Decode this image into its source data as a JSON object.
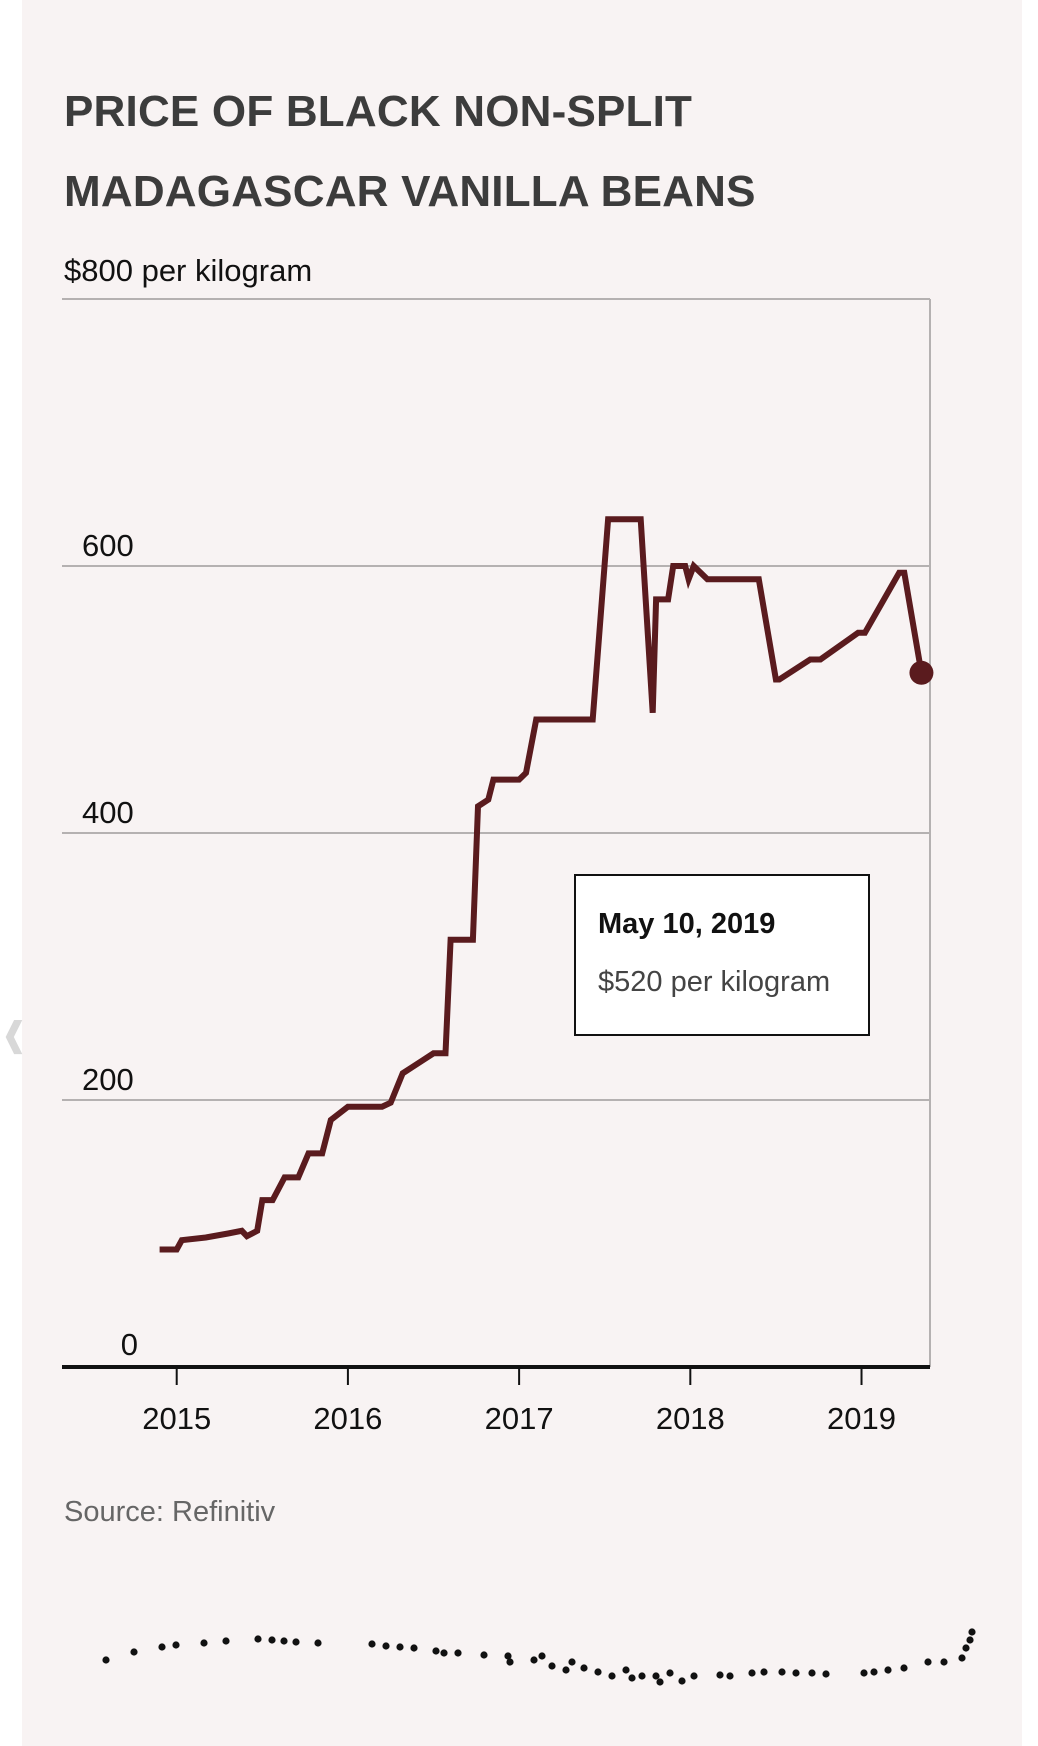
{
  "title": "PRICE OF BLACK NON-SPLIT MADAGASCAR VANILLA BEANS",
  "source": "Source: Refinitiv",
  "tooltip": {
    "date": "May 10, 2019",
    "value": "$520 per kilogram"
  },
  "colors": {
    "line": "#5a1b1e",
    "background": "#f8f3f3",
    "gridline": "#b5b1b1",
    "axis": "#111111"
  },
  "chart_data": {
    "type": "line",
    "title": "PRICE OF BLACK NON-SPLIT MADAGASCAR VANILLA BEANS",
    "ylabel": "$800 per kilogram",
    "xlabel": "",
    "ylim": [
      0,
      800
    ],
    "xlim": [
      2014.33,
      2019.4
    ],
    "grid": true,
    "y_ticks": [
      {
        "value": 0,
        "label": "0"
      },
      {
        "value": 200,
        "label": "200"
      },
      {
        "value": 400,
        "label": "400"
      },
      {
        "value": 600,
        "label": "600"
      },
      {
        "value": 800,
        "label": "$800 per kilogram"
      }
    ],
    "x_ticks": [
      {
        "value": 2015,
        "label": "2015"
      },
      {
        "value": 2016,
        "label": "2016"
      },
      {
        "value": 2017,
        "label": "2017"
      },
      {
        "value": 2018,
        "label": "2018"
      },
      {
        "value": 2019,
        "label": "2019"
      }
    ],
    "series": [
      {
        "name": "",
        "x": [
          2014.9,
          2015.0,
          2015.03,
          2015.17,
          2015.3,
          2015.38,
          2015.41,
          2015.47,
          2015.5,
          2015.56,
          2015.63,
          2015.71,
          2015.77,
          2015.85,
          2015.9,
          2016.0,
          2016.2,
          2016.25,
          2016.32,
          2016.38,
          2016.44,
          2016.5,
          2016.57,
          2016.6,
          2016.73,
          2016.76,
          2016.82,
          2016.85,
          2017.0,
          2017.04,
          2017.1,
          2017.2,
          2017.3,
          2017.4,
          2017.43,
          2017.52,
          2017.6,
          2017.71,
          2017.78,
          2017.8,
          2017.87,
          2017.9,
          2017.97,
          2017.99,
          2018.02,
          2018.1,
          2018.3,
          2018.4,
          2018.5,
          2018.52,
          2018.7,
          2018.76,
          2018.98,
          2019.02,
          2019.22,
          2019.25,
          2019.35
        ],
        "y": [
          88,
          88,
          95,
          97,
          100,
          102,
          98,
          102,
          125,
          125,
          142,
          142,
          160,
          160,
          185,
          195,
          195,
          198,
          220,
          225,
          230,
          235,
          235,
          320,
          320,
          420,
          425,
          440,
          440,
          445,
          485,
          485,
          485,
          485,
          485,
          635,
          635,
          635,
          490,
          575,
          575,
          600,
          600,
          590,
          600,
          590,
          590,
          590,
          515,
          515,
          530,
          530,
          550,
          550,
          595,
          595,
          520
        ]
      }
    ],
    "annotations": [
      {
        "x": 2019.35,
        "y": 520,
        "label": "May 10, 2019 — $520 per kilogram",
        "marker": "dot"
      }
    ]
  }
}
